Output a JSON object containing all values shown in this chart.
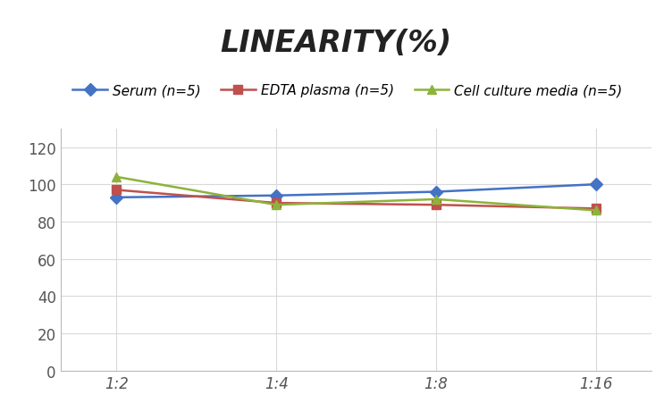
{
  "title": "LINEARITY(%)",
  "x_labels": [
    "1:2",
    "1:4",
    "1:8",
    "1:16"
  ],
  "x_positions": [
    0,
    1,
    2,
    3
  ],
  "series": [
    {
      "label": "Serum (n=5)",
      "values": [
        93,
        94,
        96,
        100
      ],
      "color": "#4472C4",
      "marker": "D",
      "linewidth": 1.8
    },
    {
      "label": "EDTA plasma (n=5)",
      "values": [
        97,
        90,
        89,
        87
      ],
      "color": "#C0504D",
      "marker": "s",
      "linewidth": 1.8
    },
    {
      "label": "Cell culture media (n=5)",
      "values": [
        104,
        89,
        92,
        86
      ],
      "color": "#8DB33A",
      "marker": "^",
      "linewidth": 1.8
    }
  ],
  "ylim": [
    0,
    130
  ],
  "yticks": [
    0,
    20,
    40,
    60,
    80,
    100,
    120
  ],
  "grid_color": "#D9D9D9",
  "background_color": "#FFFFFF",
  "title_fontsize": 24,
  "legend_fontsize": 11,
  "tick_fontsize": 12
}
